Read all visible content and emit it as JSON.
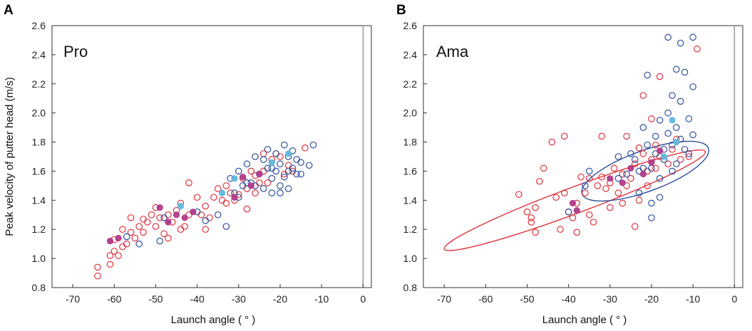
{
  "chart_data": [
    {
      "type": "scatter",
      "panel": "A",
      "label": "Pro",
      "xlabel": "Launch angle ( °  )",
      "ylabel": "Peak velocity of putter head (m/s)",
      "xlim": [
        -75,
        2
      ],
      "ylim": [
        0.8,
        2.6
      ],
      "x_ticks": [
        -70,
        -60,
        -50,
        -40,
        -30,
        -20,
        -10,
        0
      ],
      "y_ticks": [
        0.8,
        1.0,
        1.2,
        1.4,
        1.6,
        1.8,
        2.0,
        2.2,
        2.4,
        2.6
      ],
      "vertical_line_x": 0,
      "series": [
        {
          "name": "red-open",
          "color": "#e0323c",
          "filled": false,
          "points": [
            [
              -64,
              0.88
            ],
            [
              -64,
              0.94
            ],
            [
              -61,
              0.96
            ],
            [
              -61,
              1.02
            ],
            [
              -60,
              1.05
            ],
            [
              -60,
              1.13
            ],
            [
              -58,
              1.08
            ],
            [
              -57,
              1.1
            ],
            [
              -58,
              1.2
            ],
            [
              -56,
              1.18
            ],
            [
              -55,
              1.14
            ],
            [
              -56,
              1.28
            ],
            [
              -54,
              1.22
            ],
            [
              -53,
              1.18
            ],
            [
              -52,
              1.25
            ],
            [
              -51,
              1.3
            ],
            [
              -50,
              1.35
            ],
            [
              -50,
              1.22
            ],
            [
              -49,
              1.28
            ],
            [
              -48,
              1.17
            ],
            [
              -47,
              1.3
            ],
            [
              -46,
              1.25
            ],
            [
              -45,
              1.33
            ],
            [
              -44,
              1.38
            ],
            [
              -43,
              1.22
            ],
            [
              -42,
              1.3
            ],
            [
              -42,
              1.52
            ],
            [
              -40,
              1.42
            ],
            [
              -39,
              1.3
            ],
            [
              -38,
              1.36
            ],
            [
              -37,
              1.28
            ],
            [
              -36,
              1.42
            ],
            [
              -35,
              1.48
            ],
            [
              -34,
              1.4
            ],
            [
              -33,
              1.38
            ],
            [
              -32,
              1.45
            ],
            [
              -30,
              1.44
            ],
            [
              -29,
              1.55
            ],
            [
              -28,
              1.48
            ],
            [
              -28,
              1.34
            ],
            [
              -27,
              1.6
            ],
            [
              -26,
              1.45
            ],
            [
              -25,
              1.52
            ],
            [
              -24,
              1.6
            ],
            [
              -23,
              1.52
            ],
            [
              -22,
              1.68
            ],
            [
              -21,
              1.72
            ],
            [
              -20,
              1.7
            ],
            [
              -19,
              1.58
            ],
            [
              -18,
              1.64
            ],
            [
              -17,
              1.6
            ],
            [
              -14,
              1.76
            ],
            [
              -59,
              1.02
            ],
            [
              -53,
              1.27
            ],
            [
              -47,
              1.14
            ],
            [
              -44,
              1.2
            ],
            [
              -38,
              1.2
            ],
            [
              -33,
              1.5
            ],
            [
              -31,
              1.4
            ],
            [
              -26,
              1.57
            ],
            [
              -24,
              1.72
            ]
          ]
        },
        {
          "name": "blue-open",
          "color": "#2e4f9e",
          "filled": false,
          "points": [
            [
              -57,
              1.15
            ],
            [
              -54,
              1.1
            ],
            [
              -49,
              1.12
            ],
            [
              -48,
              1.28
            ],
            [
              -40,
              1.32
            ],
            [
              -38,
              1.26
            ],
            [
              -35,
              1.3
            ],
            [
              -33,
              1.22
            ],
            [
              -32,
              1.55
            ],
            [
              -31,
              1.45
            ],
            [
              -30,
              1.6
            ],
            [
              -29,
              1.5
            ],
            [
              -28,
              1.65
            ],
            [
              -27,
              1.52
            ],
            [
              -26,
              1.7
            ],
            [
              -25,
              1.58
            ],
            [
              -24,
              1.48
            ],
            [
              -23,
              1.62
            ],
            [
              -23,
              1.75
            ],
            [
              -22,
              1.55
            ],
            [
              -22,
              1.45
            ],
            [
              -21,
              1.6
            ],
            [
              -21,
              1.72
            ],
            [
              -20,
              1.5
            ],
            [
              -20,
              1.65
            ],
            [
              -19,
              1.78
            ],
            [
              -19,
              1.56
            ],
            [
              -18,
              1.7
            ],
            [
              -18,
              1.48
            ],
            [
              -17,
              1.62
            ],
            [
              -17,
              1.74
            ],
            [
              -16,
              1.58
            ],
            [
              -16,
              1.68
            ],
            [
              -15,
              1.66
            ],
            [
              -13,
              1.64
            ],
            [
              -12,
              1.78
            ],
            [
              -20,
              1.45
            ],
            [
              -24,
              1.68
            ],
            [
              -26,
              1.5
            ],
            [
              -28,
              1.52
            ],
            [
              -30,
              1.42
            ],
            [
              -22,
              1.62
            ],
            [
              -18,
              1.6
            ],
            [
              -15,
              1.58
            ]
          ]
        },
        {
          "name": "magenta-filled",
          "color": "#b03a8a",
          "filled": true,
          "points": [
            [
              -61,
              1.12
            ],
            [
              -59,
              1.14
            ],
            [
              -49,
              1.35
            ],
            [
              -47,
              1.25
            ],
            [
              -45,
              1.3
            ],
            [
              -43,
              1.28
            ],
            [
              -41,
              1.32
            ],
            [
              -31,
              1.42
            ],
            [
              -29,
              1.56
            ],
            [
              -27,
              1.5
            ],
            [
              -25,
              1.58
            ]
          ]
        },
        {
          "name": "cyan-filled",
          "color": "#5fb8dd",
          "filled": true,
          "points": [
            [
              -44,
              1.36
            ],
            [
              -34,
              1.45
            ],
            [
              -31,
              1.55
            ],
            [
              -22,
              1.66
            ],
            [
              -18,
              1.72
            ]
          ]
        }
      ]
    },
    {
      "type": "scatter",
      "panel": "B",
      "label": "Ama",
      "xlabel": "Launch angle ( °  )",
      "ylabel": "",
      "xlim": [
        -75,
        2
      ],
      "ylim": [
        0.8,
        2.6
      ],
      "x_ticks": [
        -70,
        -60,
        -50,
        -40,
        -30,
        -20,
        -10,
        0
      ],
      "y_ticks": [
        0.8,
        1.0,
        1.2,
        1.4,
        1.6,
        1.8,
        2.0,
        2.2,
        2.4,
        2.6
      ],
      "vertical_line_x": 0,
      "series": [
        {
          "name": "red-open",
          "color": "#e0323c",
          "filled": false,
          "points": [
            [
              -52,
              1.44
            ],
            [
              -50,
              1.32
            ],
            [
              -49,
              1.28
            ],
            [
              -48,
              1.35
            ],
            [
              -49,
              1.25
            ],
            [
              -48,
              1.18
            ],
            [
              -47,
              1.53
            ],
            [
              -46,
              1.62
            ],
            [
              -44,
              1.8
            ],
            [
              -43,
              1.42
            ],
            [
              -41,
              1.84
            ],
            [
              -41,
              1.45
            ],
            [
              -40,
              1.32
            ],
            [
              -39,
              1.28
            ],
            [
              -38,
              1.38
            ],
            [
              -37,
              1.56
            ],
            [
              -36,
              1.45
            ],
            [
              -35,
              1.3
            ],
            [
              -34,
              1.25
            ],
            [
              -33,
              1.5
            ],
            [
              -32,
              1.56
            ],
            [
              -32,
              1.84
            ],
            [
              -31,
              1.48
            ],
            [
              -30,
              1.52
            ],
            [
              -29,
              1.62
            ],
            [
              -28,
              1.45
            ],
            [
              -27,
              1.58
            ],
            [
              -26,
              1.84
            ],
            [
              -26,
              1.5
            ],
            [
              -25,
              1.55
            ],
            [
              -24,
              1.65
            ],
            [
              -24,
              1.22
            ],
            [
              -23,
              1.4
            ],
            [
              -22,
              1.72
            ],
            [
              -22,
              2.12
            ],
            [
              -21,
              1.6
            ],
            [
              -20,
              1.68
            ],
            [
              -20,
              1.96
            ],
            [
              -19,
              1.78
            ],
            [
              -18,
              1.7
            ],
            [
              -18,
              2.25
            ],
            [
              -16,
              1.65
            ],
            [
              -15,
              1.75
            ],
            [
              -14,
              1.82
            ],
            [
              -13,
              1.68
            ],
            [
              -11,
              1.7
            ],
            [
              -9,
              2.44
            ],
            [
              -42,
              1.2
            ],
            [
              -38,
              1.18
            ],
            [
              -35,
              1.55
            ],
            [
              -30,
              1.35
            ],
            [
              -27,
              1.38
            ],
            [
              -21,
              1.5
            ],
            [
              -19,
              1.62
            ],
            [
              -23,
              1.76
            ]
          ]
        },
        {
          "name": "blue-open",
          "color": "#2e4f9e",
          "filled": false,
          "points": [
            [
              -40,
              1.32
            ],
            [
              -36,
              1.5
            ],
            [
              -35,
              1.6
            ],
            [
              -28,
              1.7
            ],
            [
              -26,
              1.58
            ],
            [
              -24,
              1.68
            ],
            [
              -23,
              1.45
            ],
            [
              -22,
              1.62
            ],
            [
              -22,
              1.9
            ],
            [
              -21,
              1.78
            ],
            [
              -21,
              2.26
            ],
            [
              -20,
              1.38
            ],
            [
              -20,
              1.62
            ],
            [
              -19,
              1.72
            ],
            [
              -19,
              1.84
            ],
            [
              -18,
              1.55
            ],
            [
              -18,
              1.95
            ],
            [
              -17,
              1.68
            ],
            [
              -17,
              1.75
            ],
            [
              -16,
              2.0
            ],
            [
              -16,
              2.52
            ],
            [
              -16,
              1.86
            ],
            [
              -15,
              1.78
            ],
            [
              -15,
              2.12
            ],
            [
              -14,
              1.65
            ],
            [
              -14,
              2.3
            ],
            [
              -14,
              1.9
            ],
            [
              -13,
              1.82
            ],
            [
              -13,
              2.48
            ],
            [
              -13,
              2.08
            ],
            [
              -12,
              1.75
            ],
            [
              -12,
              2.28
            ],
            [
              -11,
              1.96
            ],
            [
              -11,
              1.72
            ],
            [
              -10,
              2.52
            ],
            [
              -10,
              2.18
            ],
            [
              -10,
              1.85
            ],
            [
              -20,
              1.28
            ],
            [
              -18,
              1.42
            ],
            [
              -23,
              1.6
            ],
            [
              -25,
              1.72
            ],
            [
              -28,
              1.55
            ],
            [
              -15,
              1.6
            ]
          ]
        },
        {
          "name": "magenta-filled",
          "color": "#b03a8a",
          "filled": true,
          "points": [
            [
              -39,
              1.38
            ],
            [
              -38,
              1.33
            ],
            [
              -30,
              1.55
            ],
            [
              -27,
              1.52
            ],
            [
              -25,
              1.62
            ],
            [
              -22,
              1.58
            ],
            [
              -20,
              1.66
            ],
            [
              -18,
              1.74
            ]
          ]
        },
        {
          "name": "cyan-filled",
          "color": "#5fb8dd",
          "filled": true,
          "points": [
            [
              -17,
              1.7
            ],
            [
              -15,
              1.95
            ],
            [
              -14,
              1.8
            ]
          ]
        }
      ],
      "ellipses": [
        {
          "name": "red-ellipse",
          "color": "#e0323c",
          "cx": -38.5,
          "cy": 1.4,
          "rx": 33.6,
          "ry": 0.09,
          "angle": 20.5
        },
        {
          "name": "blue-ellipse",
          "color": "#2e4f9e",
          "cx": -21.5,
          "cy": 1.6,
          "rx": 16.2,
          "ry": 0.14,
          "angle": 20.0
        }
      ]
    }
  ]
}
